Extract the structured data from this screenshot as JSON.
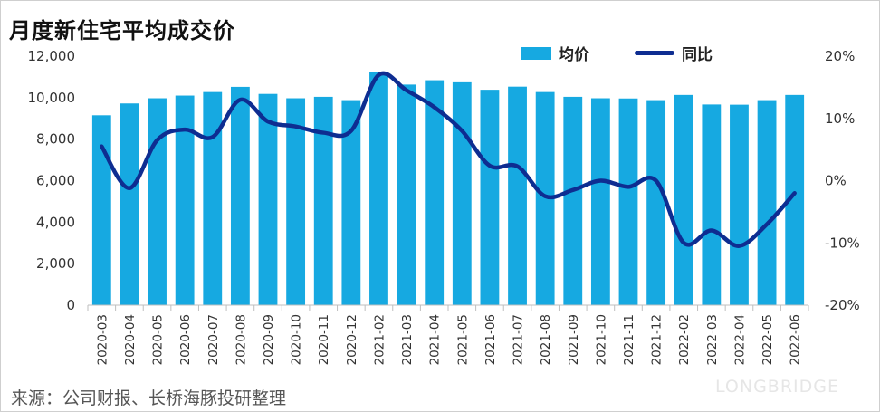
{
  "title": "月度新住宅平均成交价",
  "source": "来源：公司财报、长桥海豚投研整理",
  "watermark": "LONGBRIDGE",
  "colors": {
    "bar": "#16a9e1",
    "line": "#0e2d91"
  },
  "legend": {
    "bar_label": "均价",
    "line_label": "同比"
  },
  "chart_data": {
    "type": "bar",
    "categories": [
      "2020-03",
      "2020-04",
      "2020-05",
      "2020-06",
      "2020-07",
      "2020-08",
      "2020-09",
      "2020-10",
      "2020-11",
      "2020-12",
      "2021-02",
      "2021-03",
      "2021-04",
      "2021-05",
      "2021-06",
      "2021-07",
      "2021-08",
      "2021-09",
      "2021-10",
      "2021-11",
      "2021-12",
      "2022-02",
      "2022-03",
      "2022-04",
      "2022-05",
      "2022-06"
    ],
    "series": [
      {
        "name": "均价",
        "type": "bar",
        "axis": "left",
        "values": [
          9150,
          9720,
          9970,
          10100,
          10270,
          10520,
          10180,
          9970,
          10040,
          9880,
          11220,
          10630,
          10840,
          10740,
          10380,
          10530,
          10270,
          10040,
          9970,
          9960,
          9880,
          10130,
          9670,
          9660,
          9880,
          10130
        ]
      },
      {
        "name": "同比",
        "type": "line",
        "axis": "right",
        "unit": "%",
        "values": [
          5.5,
          -1.2,
          6.5,
          8.2,
          7.0,
          13.0,
          9.5,
          8.7,
          7.7,
          8.0,
          17.0,
          14.5,
          11.8,
          8.0,
          2.4,
          2.3,
          -2.5,
          -1.5,
          0.0,
          -1.0,
          0.0,
          -10.0,
          -8.0,
          -10.5,
          -7.0,
          -2.0
        ]
      }
    ],
    "left_axis": {
      "ylim": [
        0,
        12000
      ],
      "ticks": [
        "0",
        "2,000",
        "4,000",
        "6,000",
        "8,000",
        "10,000",
        "12,000"
      ]
    },
    "right_axis": {
      "ylim": [
        -20,
        20
      ],
      "ticks": [
        "-20%",
        "-10%",
        "0%",
        "10%",
        "20%"
      ]
    },
    "grid": false,
    "legend_position": "top-right"
  }
}
